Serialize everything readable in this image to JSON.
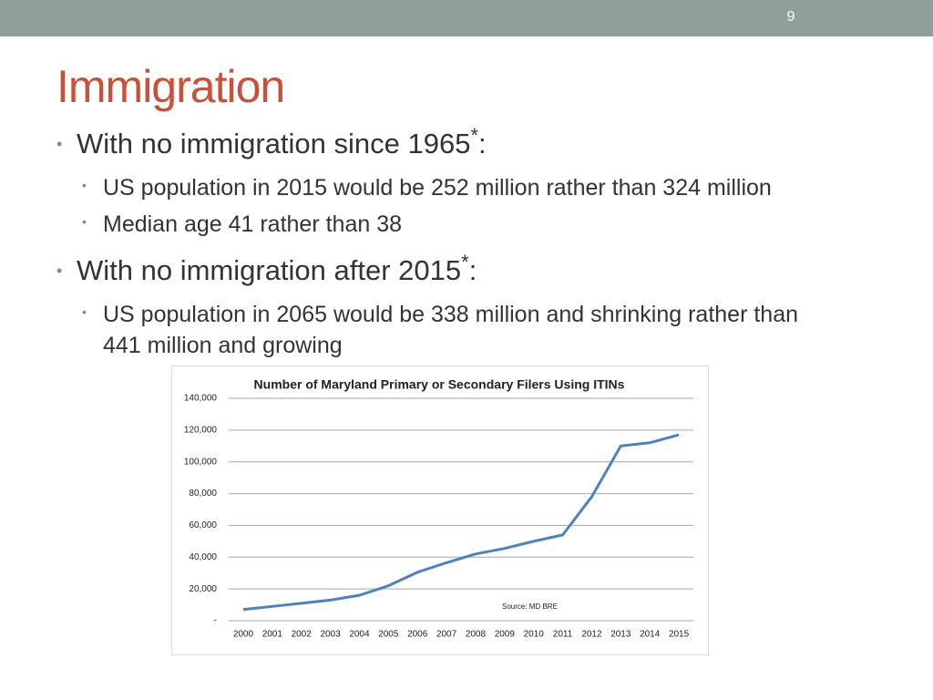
{
  "slide": {
    "number": "9",
    "title": "Immigration",
    "bullets": [
      {
        "text": "With no immigration since 1965",
        "sup": "*",
        "tail": ":",
        "sub": [
          "US population in 2015 would be 252 million rather than 324 million",
          "Median age 41 rather than 38"
        ]
      },
      {
        "text": "With no immigration after 2015",
        "sup": "*",
        "tail": ":",
        "sub": [
          "US population in 2065 would be 338 million and shrinking rather than 441 million and growing"
        ]
      }
    ]
  },
  "chart_data": {
    "type": "line",
    "title": "Number of Maryland Primary or Secondary Filers Using ITINs",
    "annotation": "Source: MD BRE",
    "categories": [
      "2000",
      "2001",
      "2002",
      "2003",
      "2004",
      "2005",
      "2006",
      "2007",
      "2008",
      "2009",
      "2010",
      "2011",
      "2012",
      "2013",
      "2014",
      "2015"
    ],
    "values": [
      7000,
      9000,
      11000,
      13000,
      16000,
      22000,
      30500,
      36500,
      42000,
      45500,
      50000,
      54000,
      78000,
      110000,
      112000,
      117000
    ],
    "color": "#4f81bd",
    "ylim": [
      0,
      140000
    ],
    "yticks": [
      {
        "value": 0,
        "label": "-"
      },
      {
        "value": 20000,
        "label": "20,000"
      },
      {
        "value": 40000,
        "label": "40,000"
      },
      {
        "value": 60000,
        "label": "60,000"
      },
      {
        "value": 80000,
        "label": "80,000"
      },
      {
        "value": 100000,
        "label": "100,000"
      },
      {
        "value": 120000,
        "label": "120,000"
      },
      {
        "value": 140000,
        "label": "140,000"
      }
    ],
    "grid": true
  }
}
